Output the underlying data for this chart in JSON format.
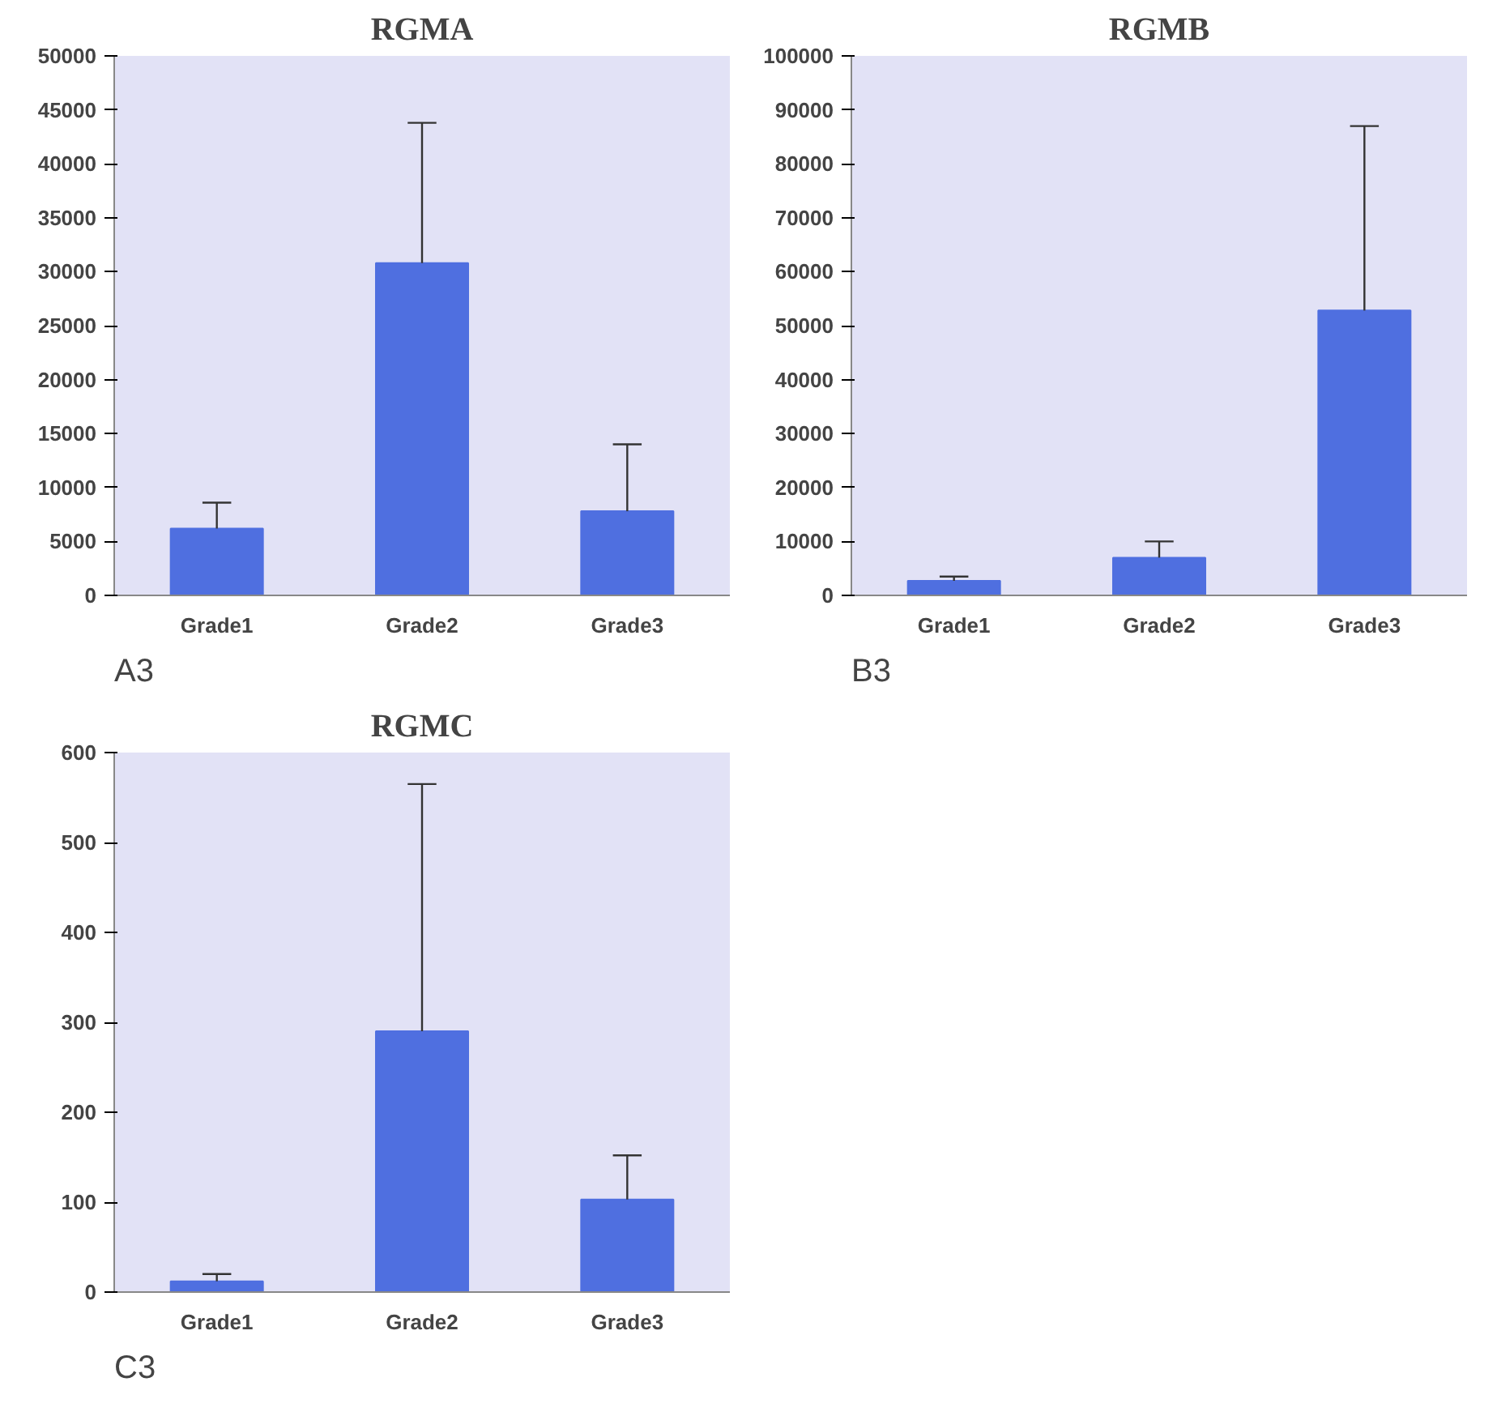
{
  "chart_data": [
    {
      "type": "bar",
      "title": "RGMA",
      "categories": [
        "Grade1",
        "Grade2",
        "Grade3"
      ],
      "values": [
        6200,
        30800,
        7800
      ],
      "errors": [
        [
          6200,
          8600
        ],
        [
          30800,
          43800
        ],
        [
          7800,
          14000
        ]
      ],
      "color": "#4f6fe0",
      "ylim": [
        0,
        50000
      ],
      "yticks": [
        0,
        5000,
        10000,
        15000,
        20000,
        25000,
        30000,
        35000,
        40000,
        45000,
        50000
      ],
      "grid": false,
      "annotations": [
        "A3"
      ]
    },
    {
      "type": "bar",
      "title": "RGMB",
      "categories": [
        "Grade1",
        "Grade2",
        "Grade3"
      ],
      "values": [
        2700,
        7000,
        52800
      ],
      "errors": [
        [
          2700,
          3500
        ],
        [
          7000,
          10000
        ],
        [
          52800,
          87000
        ]
      ],
      "color": "#4f6fe0",
      "ylim": [
        0,
        100000
      ],
      "yticks": [
        0,
        10000,
        20000,
        30000,
        40000,
        50000,
        60000,
        70000,
        80000,
        90000,
        100000
      ],
      "grid": false,
      "annotations": [
        "B3"
      ]
    },
    {
      "type": "bar",
      "title": "RGMC",
      "categories": [
        "Grade1",
        "Grade2",
        "Grade3"
      ],
      "values": [
        12,
        290,
        103
      ],
      "errors": [
        [
          12,
          20
        ],
        [
          290,
          565
        ],
        [
          103,
          152
        ]
      ],
      "color": "#4f6fe0",
      "ylim": [
        0,
        600
      ],
      "yticks": [
        0,
        100,
        200,
        300,
        400,
        500,
        600
      ],
      "grid": false,
      "annotations": [
        "C3"
      ]
    }
  ]
}
